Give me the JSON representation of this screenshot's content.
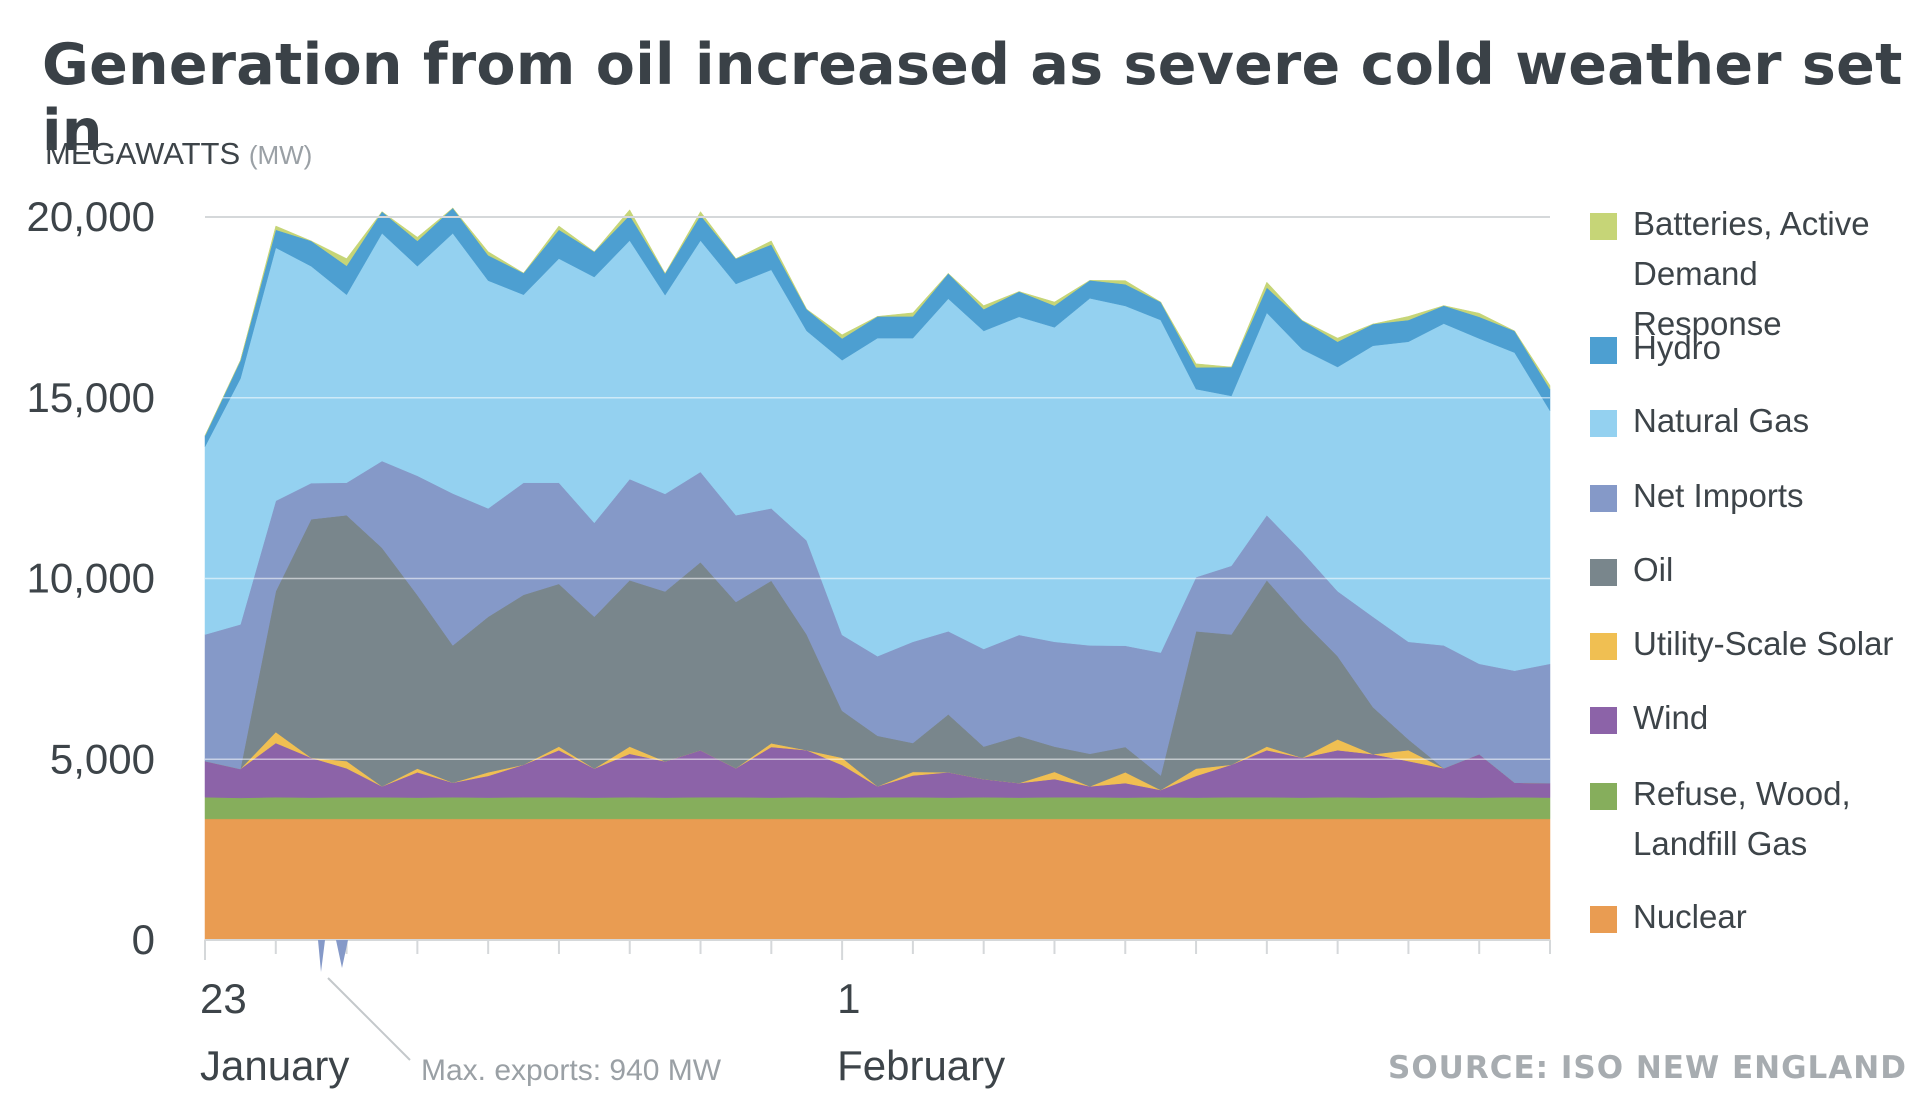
{
  "title": "Generation from oil increased as severe cold weather set in",
  "unit_label": "MEGAWATTS",
  "unit_sub": "(MW)",
  "source": "SOURCE: ISO NEW ENGLAND",
  "annotation": "Max. exports: 940 MW",
  "chart_data": {
    "type": "area",
    "stacked": true,
    "title": "Generation from oil increased as severe cold weather set in",
    "ylabel": "MEGAWATTS (MW)",
    "ylim": [
      0,
      20000
    ],
    "yticks": [
      0,
      5000,
      10000,
      15000,
      20000
    ],
    "ytick_labels": [
      "0",
      "5,000",
      "10,000",
      "15,000",
      "20,000"
    ],
    "xlim": [
      "2018-01-23",
      "2018-02-11"
    ],
    "xtick_labels": [
      {
        "day": "23",
        "month": "January"
      },
      {
        "day": "1",
        "month": "February"
      }
    ],
    "grid": "horizontal",
    "legend_position": "right",
    "x_days": [
      0,
      0.5,
      1,
      1.5,
      2,
      2.5,
      3,
      3.5,
      4,
      4.5,
      5,
      5.5,
      6,
      6.5,
      7,
      7.5,
      8,
      8.5,
      9,
      9.5,
      10,
      10.5,
      11,
      11.5,
      12,
      12.5,
      13,
      13.5,
      14,
      14.5,
      15,
      15.5,
      16,
      16.5,
      17,
      17.5,
      18,
      18.5,
      19
    ],
    "series": [
      {
        "name": "Nuclear",
        "color": "#e99c52",
        "values": [
          3350,
          3350,
          3350,
          3350,
          3350,
          3350,
          3350,
          3350,
          3350,
          3350,
          3350,
          3350,
          3350,
          3350,
          3350,
          3350,
          3350,
          3350,
          3350,
          3350,
          3350,
          3350,
          3350,
          3350,
          3350,
          3350,
          3350,
          3350,
          3350,
          3350,
          3350,
          3350,
          3350,
          3350,
          3350,
          3350,
          3350,
          3350,
          3350
        ]
      },
      {
        "name": "Refuse, Wood, Landfill Gas",
        "color": "#86ae5c",
        "values": [
          600,
          580,
          600,
          590,
          600,
          600,
          590,
          600,
          590,
          600,
          600,
          590,
          600,
          590,
          600,
          600,
          590,
          600,
          590,
          600,
          600,
          590,
          600,
          590,
          600,
          600,
          590,
          600,
          590,
          600,
          600,
          590,
          600,
          590,
          600,
          600,
          590,
          600,
          590
        ]
      },
      {
        "name": "Wind",
        "color": "#8c63a8",
        "values": [
          1000,
          800,
          1500,
          1100,
          800,
          300,
          700,
          400,
          600,
          900,
          1300,
          800,
          1200,
          1000,
          1300,
          800,
          1400,
          1300,
          900,
          300,
          600,
          700,
          500,
          400,
          500,
          300,
          400,
          200,
          600,
          900,
          1300,
          1100,
          1300,
          1200,
          1000,
          800,
          1200,
          400,
          400
        ]
      },
      {
        "name": "Utility-Scale Solar",
        "color": "#f0bf52",
        "values": [
          0,
          0,
          300,
          0,
          200,
          0,
          100,
          0,
          100,
          0,
          100,
          0,
          200,
          0,
          0,
          0,
          100,
          0,
          200,
          0,
          100,
          0,
          0,
          0,
          200,
          0,
          300,
          0,
          200,
          0,
          100,
          0,
          300,
          0,
          300,
          0,
          0,
          0,
          0
        ]
      },
      {
        "name": "Oil",
        "color": "#79868c",
        "values": [
          0,
          0,
          3900,
          6600,
          6800,
          6600,
          4800,
          3800,
          4300,
          4700,
          4500,
          4200,
          4600,
          4700,
          5200,
          4600,
          4500,
          3200,
          1300,
          1400,
          800,
          1600,
          900,
          1300,
          700,
          900,
          700,
          400,
          3800,
          3600,
          4600,
          3800,
          2300,
          1300,
          300,
          0,
          0,
          0,
          0
        ]
      },
      {
        "name": "Net Imports",
        "color": "#8599c8",
        "values": [
          3500,
          4000,
          2500,
          1000,
          900,
          2400,
          3300,
          4200,
          3000,
          3100,
          2800,
          2600,
          2800,
          2700,
          2500,
          2400,
          2000,
          2600,
          2100,
          2200,
          2800,
          2300,
          2700,
          2800,
          2900,
          3000,
          2800,
          3400,
          1500,
          1900,
          1800,
          1900,
          1800,
          2500,
          2700,
          3400,
          2500,
          3100,
          3300
        ]
      },
      {
        "name": "Natural Gas",
        "color": "#94d1f0",
        "values": [
          5200,
          6800,
          7000,
          6000,
          5200,
          6300,
          5800,
          7200,
          6300,
          5200,
          6200,
          6800,
          6600,
          5500,
          6400,
          6400,
          6600,
          5800,
          7600,
          8800,
          8400,
          9200,
          8800,
          8800,
          8700,
          9600,
          9400,
          9200,
          5200,
          4700,
          5600,
          5600,
          6200,
          7500,
          8300,
          8900,
          9000,
          8800,
          7000
        ]
      },
      {
        "name": "Hydro",
        "color": "#4d9fd1",
        "values": [
          300,
          500,
          500,
          700,
          800,
          600,
          700,
          700,
          700,
          600,
          800,
          700,
          700,
          600,
          700,
          700,
          700,
          600,
          600,
          600,
          600,
          700,
          600,
          700,
          600,
          500,
          600,
          500,
          600,
          800,
          700,
          800,
          700,
          600,
          600,
          500,
          600,
          600,
          600
        ]
      },
      {
        "name": "Batteries, Active Demand Response",
        "color": "#c6d577",
        "values": [
          0,
          0,
          100,
          0,
          200,
          0,
          100,
          0,
          100,
          0,
          100,
          0,
          150,
          0,
          100,
          0,
          100,
          0,
          100,
          0,
          100,
          0,
          100,
          0,
          100,
          0,
          100,
          0,
          100,
          0,
          150,
          0,
          100,
          0,
          100,
          0,
          100,
          0,
          100
        ]
      }
    ]
  },
  "legend": [
    {
      "label": "Batteries, Active",
      "label2": "Demand Response",
      "color": "#c6d577"
    },
    {
      "label": "Hydro",
      "color": "#4d9fd1"
    },
    {
      "label": "Natural Gas",
      "color": "#94d1f0"
    },
    {
      "label": "Net Imports",
      "color": "#8599c8"
    },
    {
      "label": "Oil",
      "color": "#79868c"
    },
    {
      "label": "Utility-Scale Solar",
      "color": "#f0bf52"
    },
    {
      "label": "Wind",
      "color": "#8c63a8"
    },
    {
      "label": "Refuse, Wood,",
      "label2": "Landfill Gas",
      "color": "#86ae5c"
    },
    {
      "label": "Nuclear",
      "color": "#e99c52"
    }
  ]
}
